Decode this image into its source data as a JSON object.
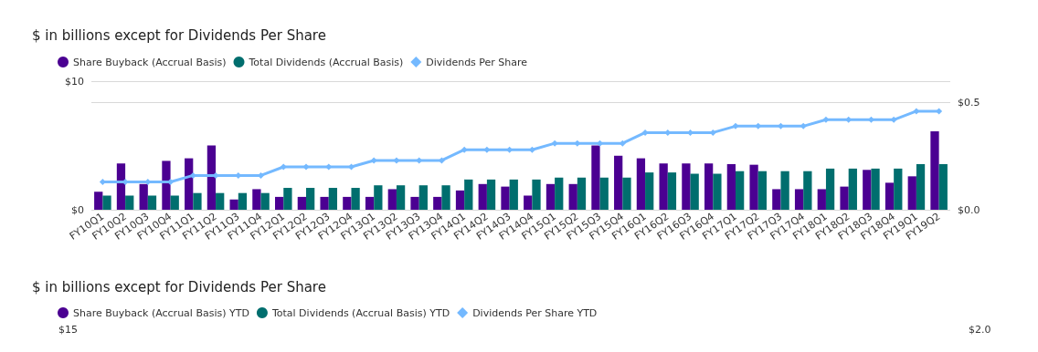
{
  "chart_data": [
    {
      "type": "bar",
      "title": "$ in billions except for Dividends Per Share",
      "categories": [
        "FY10Q1",
        "FY10Q2",
        "FY10Q3",
        "FY10Q4",
        "FY11Q1",
        "FY11Q2",
        "FY11Q3",
        "FY11Q4",
        "FY12Q1",
        "FY12Q2",
        "FY12Q3",
        "FY12Q4",
        "FY13Q1",
        "FY13Q2",
        "FY13Q3",
        "FY13Q4",
        "FY14Q1",
        "FY14Q2",
        "FY14Q3",
        "FY14Q4",
        "FY15Q1",
        "FY15Q2",
        "FY15Q3",
        "FY15Q4",
        "FY16Q1",
        "FY16Q2",
        "FY16Q3",
        "FY16Q4",
        "FY17Q1",
        "FY17Q2",
        "FY17Q3",
        "FY17Q4",
        "FY18Q1",
        "FY18Q2",
        "FY18Q3",
        "FY18Q4",
        "FY19Q1",
        "FY19Q2"
      ],
      "series": [
        {
          "name": "Share Buyback (Accrual Basis)",
          "type": "bar",
          "color": "#4b0092",
          "values": [
            1.4,
            3.6,
            2.0,
            3.8,
            4.0,
            5.0,
            0.8,
            1.6,
            1.0,
            1.0,
            1.0,
            1.0,
            1.0,
            1.6,
            1.0,
            1.0,
            1.5,
            2.0,
            1.8,
            1.1,
            2.0,
            2.0,
            5.0,
            4.2,
            4.0,
            3.6,
            3.6,
            3.6,
            3.55,
            3.5,
            1.6,
            1.6,
            1.6,
            1.8,
            3.1,
            2.1,
            2.6,
            6.1
          ]
        },
        {
          "name": "Total Dividends (Accrual Basis)",
          "type": "bar",
          "color": "#006e6e",
          "values": [
            1.1,
            1.1,
            1.1,
            1.1,
            1.3,
            1.3,
            1.3,
            1.3,
            1.7,
            1.7,
            1.7,
            1.7,
            1.9,
            1.9,
            1.9,
            1.9,
            2.35,
            2.35,
            2.35,
            2.35,
            2.5,
            2.5,
            2.5,
            2.5,
            2.9,
            2.9,
            2.8,
            2.8,
            3.0,
            3.0,
            3.0,
            3.0,
            3.2,
            3.2,
            3.2,
            3.2,
            3.55,
            3.55
          ]
        },
        {
          "name": "Dividends Per Share",
          "type": "line",
          "axis": "y2",
          "color": "#74b9ff",
          "values": [
            0.13,
            0.13,
            0.13,
            0.13,
            0.16,
            0.16,
            0.16,
            0.16,
            0.2,
            0.2,
            0.2,
            0.2,
            0.23,
            0.23,
            0.23,
            0.23,
            0.28,
            0.28,
            0.28,
            0.28,
            0.31,
            0.31,
            0.31,
            0.31,
            0.36,
            0.36,
            0.36,
            0.36,
            0.39,
            0.39,
            0.39,
            0.39,
            0.42,
            0.42,
            0.42,
            0.42,
            0.46,
            0.46
          ]
        }
      ],
      "ylim": [
        0,
        10
      ],
      "yticks": [
        {
          "value": 0,
          "label": "$0"
        },
        {
          "value": 10,
          "label": "$10"
        }
      ],
      "y2lim": [
        0,
        0.6
      ],
      "y2ticks": [
        {
          "value": 0,
          "label": "$0.0"
        },
        {
          "value": 0.5,
          "label": "$0.5"
        }
      ],
      "grid": "y",
      "legend": "top left",
      "marker": "diamond",
      "line_style": "solid"
    },
    {
      "type": "other",
      "title": "$ in billions except for Dividends Per Share",
      "series": [
        {
          "name": "Share Buyback (Accrual Basis) YTD",
          "type": "bar",
          "color": "#4b0092"
        },
        {
          "name": "Total Dividends (Accrual Basis) YTD",
          "type": "bar",
          "color": "#006e6e"
        },
        {
          "name": "Dividends Per Share YTD",
          "type": "line",
          "color": "#74b9ff"
        }
      ],
      "annotations": [
        "$15",
        "$2.0"
      ],
      "legend": "top left"
    }
  ]
}
